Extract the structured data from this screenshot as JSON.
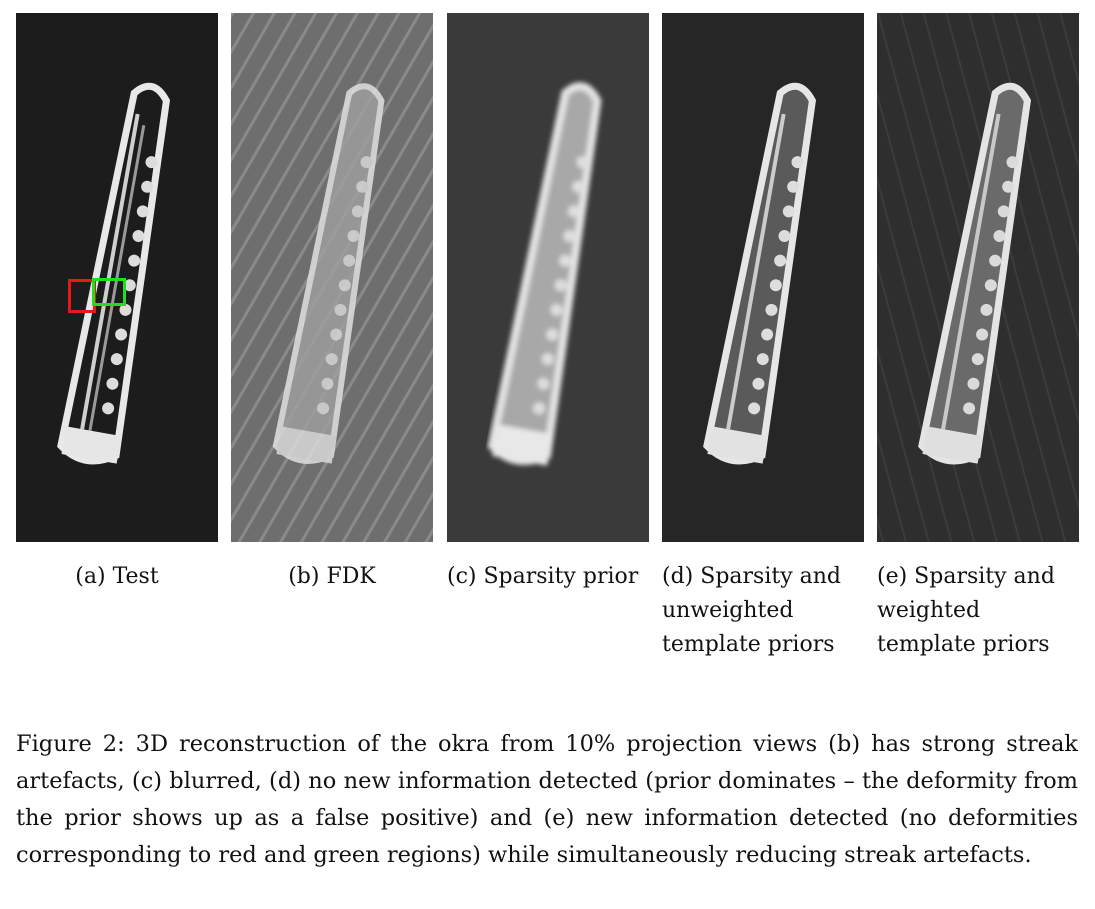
{
  "figure": {
    "panels": [
      {
        "id": "a",
        "label": "(a) Test",
        "tone": "test",
        "roi": true
      },
      {
        "id": "b",
        "label": "(b) FDK",
        "tone": "fdk",
        "roi": false
      },
      {
        "id": "c",
        "label": "(c) Sparsity prior",
        "tone": "sparsity",
        "roi": false
      },
      {
        "id": "d",
        "label": "(d) Sparsity and unweighted template priors",
        "tone": "unweighted",
        "roi": false
      },
      {
        "id": "e",
        "label": "(e) Sparsity and weighted template priors",
        "tone": "weighted",
        "roi": false
      }
    ],
    "caption": "Figure 2: 3D reconstruction of the okra from 10% projection views (b) has strong streak artefacts, (c) blurred, (d) no new information detected (prior dominates – the deformity from the prior shows up as a false positive) and (e) new information detected (no deformities corresponding to red and green regions) while simultaneously reducing streak artefacts.",
    "roi_colors": {
      "red": "#e41a1a",
      "green": "#1ee01e"
    }
  }
}
